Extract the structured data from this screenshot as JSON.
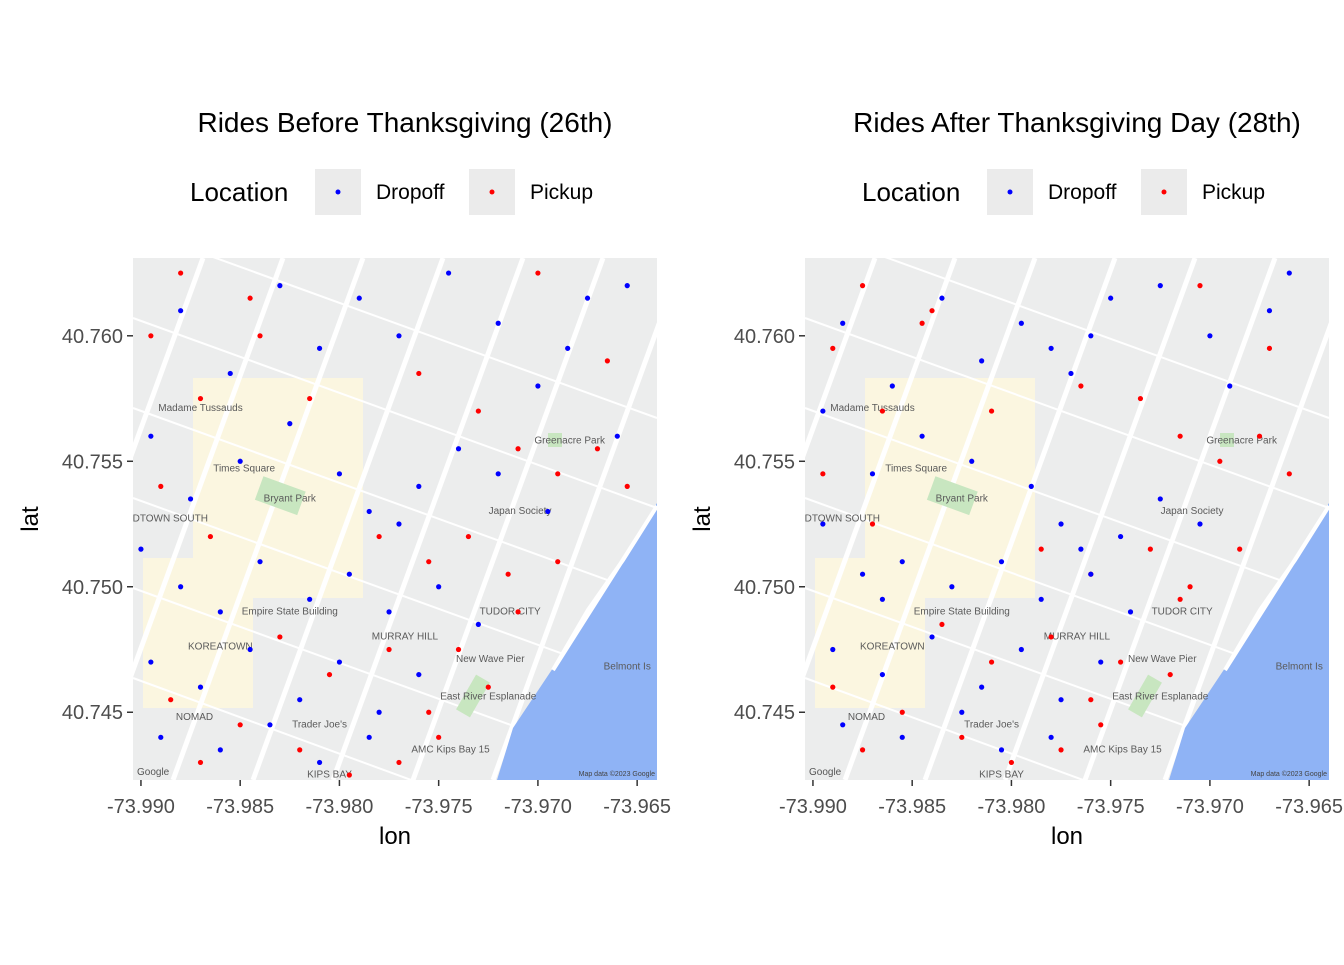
{
  "chart_data": [
    {
      "type": "scatter",
      "title": "Rides Before Thanksgiving (26th)",
      "legend_title": "Location",
      "legend_position": "top",
      "x_label": "lon",
      "y_label": "lat",
      "xlim": [
        -73.9904,
        -73.964
      ],
      "ylim": [
        40.7423,
        40.7631
      ],
      "xticks": [
        {
          "value": -73.99,
          "label": "-73.990"
        },
        {
          "value": -73.985,
          "label": "-73.985"
        },
        {
          "value": -73.98,
          "label": "-73.980"
        },
        {
          "value": -73.975,
          "label": "-73.975"
        },
        {
          "value": -73.97,
          "label": "-73.970"
        },
        {
          "value": -73.965,
          "label": "-73.965"
        }
      ],
      "yticks": [
        {
          "value": 40.745,
          "label": "40.745"
        },
        {
          "value": 40.75,
          "label": "40.750"
        },
        {
          "value": 40.755,
          "label": "40.755"
        },
        {
          "value": 40.76,
          "label": "40.760"
        }
      ],
      "series": [
        {
          "name": "Dropoff",
          "color": "#0000ff",
          "x": [
            -73.988,
            -73.9855,
            -73.983,
            -73.981,
            -73.979,
            -73.977,
            -73.9745,
            -73.972,
            -73.97,
            -73.9675,
            -73.966,
            -73.9895,
            -73.9875,
            -73.985,
            -73.9825,
            -73.98,
            -73.9785,
            -73.977,
            -73.976,
            -73.974,
            -73.972,
            -73.9695,
            -73.99,
            -73.988,
            -73.986,
            -73.984,
            -73.9815,
            -73.9795,
            -73.9775,
            -73.975,
            -73.973,
            -73.9895,
            -73.987,
            -73.9845,
            -73.982,
            -73.98,
            -73.978,
            -73.976,
            -73.989,
            -73.986,
            -73.9835,
            -73.981,
            -73.9785,
            -73.9655,
            -73.9685
          ],
          "values": [
            40.761,
            40.7585,
            40.762,
            40.7595,
            40.7615,
            40.76,
            40.7625,
            40.7605,
            40.758,
            40.7615,
            40.756,
            40.756,
            40.7535,
            40.755,
            40.7565,
            40.7545,
            40.753,
            40.7525,
            40.754,
            40.7555,
            40.7545,
            40.753,
            40.7515,
            40.75,
            40.749,
            40.751,
            40.7495,
            40.7505,
            40.749,
            40.75,
            40.7485,
            40.747,
            40.746,
            40.7475,
            40.7455,
            40.747,
            40.745,
            40.7465,
            40.744,
            40.7435,
            40.7445,
            40.743,
            40.744,
            40.762,
            40.7595
          ]
        },
        {
          "name": "Pickup",
          "color": "#ff0000",
          "x": [
            -73.9895,
            -73.987,
            -73.984,
            -73.9815,
            -73.976,
            -73.973,
            -73.971,
            -73.969,
            -73.967,
            -73.9655,
            -73.978,
            -73.9755,
            -73.9735,
            -73.9715,
            -73.989,
            -73.9865,
            -73.983,
            -73.9805,
            -73.9775,
            -73.9755,
            -73.974,
            -73.9725,
            -73.9885,
            -73.985,
            -73.982,
            -73.9795,
            -73.977,
            -73.975,
            -73.988,
            -73.97,
            -73.969,
            -73.971,
            -73.987,
            -73.9845,
            -73.9665
          ],
          "values": [
            40.76,
            40.7575,
            40.76,
            40.7575,
            40.7585,
            40.757,
            40.7555,
            40.7545,
            40.7555,
            40.754,
            40.752,
            40.751,
            40.752,
            40.7505,
            40.754,
            40.752,
            40.748,
            40.7465,
            40.7475,
            40.745,
            40.7475,
            40.746,
            40.7455,
            40.7445,
            40.7435,
            40.7425,
            40.743,
            40.744,
            40.7625,
            40.7625,
            40.751,
            40.749,
            40.743,
            40.7615,
            40.759
          ]
        }
      ]
    },
    {
      "type": "scatter",
      "title": "Rides After Thanksgiving Day (28th)",
      "legend_title": "Location",
      "legend_position": "top",
      "x_label": "lon",
      "y_label": "lat",
      "xlim": [
        -73.9904,
        -73.964
      ],
      "ylim": [
        40.7423,
        40.7631
      ],
      "xticks": [
        {
          "value": -73.99,
          "label": "-73.990"
        },
        {
          "value": -73.985,
          "label": "-73.985"
        },
        {
          "value": -73.98,
          "label": "-73.980"
        },
        {
          "value": -73.975,
          "label": "-73.975"
        },
        {
          "value": -73.97,
          "label": "-73.970"
        },
        {
          "value": -73.965,
          "label": "-73.965"
        }
      ],
      "yticks": [
        {
          "value": 40.745,
          "label": "40.745"
        },
        {
          "value": 40.75,
          "label": "40.750"
        },
        {
          "value": 40.755,
          "label": "40.755"
        },
        {
          "value": 40.76,
          "label": "40.760"
        }
      ],
      "series": [
        {
          "name": "Dropoff",
          "color": "#0000ff",
          "x": [
            -73.9885,
            -73.986,
            -73.9835,
            -73.9815,
            -73.9795,
            -73.978,
            -73.977,
            -73.976,
            -73.975,
            -73.9725,
            -73.97,
            -73.967,
            -73.9895,
            -73.987,
            -73.9845,
            -73.982,
            -73.979,
            -73.9775,
            -73.9765,
            -73.9745,
            -73.9725,
            -73.9705,
            -73.9895,
            -73.9875,
            -73.9865,
            -73.9855,
            -73.983,
            -73.9805,
            -73.9785,
            -73.976,
            -73.974,
            -73.989,
            -73.9865,
            -73.984,
            -73.9815,
            -73.9795,
            -73.9775,
            -73.9755,
            -73.9885,
            -73.9855,
            -73.9825,
            -73.9805,
            -73.978,
            -73.966,
            -73.969
          ],
          "values": [
            40.7605,
            40.758,
            40.7615,
            40.759,
            40.7605,
            40.7595,
            40.7585,
            40.76,
            40.7615,
            40.762,
            40.76,
            40.761,
            40.757,
            40.7545,
            40.756,
            40.755,
            40.754,
            40.7525,
            40.7515,
            40.752,
            40.7535,
            40.7525,
            40.7525,
            40.7505,
            40.7495,
            40.751,
            40.75,
            40.751,
            40.7495,
            40.7505,
            40.749,
            40.7475,
            40.7465,
            40.748,
            40.746,
            40.7475,
            40.7455,
            40.747,
            40.7445,
            40.744,
            40.745,
            40.7435,
            40.744,
            40.7625,
            40.758
          ]
        },
        {
          "name": "Pickup",
          "color": "#ff0000",
          "x": [
            -73.989,
            -73.9865,
            -73.9845,
            -73.981,
            -73.9765,
            -73.9735,
            -73.9715,
            -73.9695,
            -73.9675,
            -73.966,
            -73.9785,
            -73.976,
            -73.973,
            -73.971,
            -73.9895,
            -73.987,
            -73.9835,
            -73.981,
            -73.978,
            -73.976,
            -73.9745,
            -73.972,
            -73.989,
            -73.9855,
            -73.9825,
            -73.98,
            -73.9775,
            -73.9755,
            -73.9875,
            -73.9705,
            -73.9685,
            -73.9715,
            -73.9875,
            -73.984,
            -73.967
          ],
          "values": [
            40.7595,
            40.757,
            40.7605,
            40.757,
            40.758,
            40.7575,
            40.756,
            40.755,
            40.756,
            40.7545,
            40.7515,
            40.7505,
            40.7515,
            40.75,
            40.7545,
            40.7525,
            40.7485,
            40.747,
            40.748,
            40.7455,
            40.747,
            40.7465,
            40.746,
            40.745,
            40.744,
            40.743,
            40.7435,
            40.7445,
            40.762,
            40.762,
            40.7515,
            40.7495,
            40.7435,
            40.761,
            40.7595
          ]
        }
      ]
    }
  ],
  "map": {
    "attribution": "Map data ©2023 Google",
    "logo": "Google",
    "labels": [
      {
        "text": "Bryant Park",
        "x": -73.9825,
        "y": 40.7534
      },
      {
        "text": "MURRAY HILL",
        "x": -73.9767,
        "y": 40.7479
      },
      {
        "text": "KOREATOWN",
        "x": -73.986,
        "y": 40.7475
      },
      {
        "text": "TUDOR CITY",
        "x": -73.9714,
        "y": 40.7489
      },
      {
        "text": "New Wave Pier",
        "x": -73.9724,
        "y": 40.747
      },
      {
        "text": "Belmont Is",
        "x": -73.9655,
        "y": 40.7467
      },
      {
        "text": "AMC Kips Bay 15",
        "x": -73.9744,
        "y": 40.7434
      },
      {
        "text": "Trader Joe's",
        "x": -73.981,
        "y": 40.7444
      },
      {
        "text": "NOMAD",
        "x": -73.9873,
        "y": 40.7447
      },
      {
        "text": "Empire State Building",
        "x": -73.9825,
        "y": 40.7489
      },
      {
        "text": "MIDTOWN SOUTH",
        "x": -73.9888,
        "y": 40.7526
      },
      {
        "text": "Japan Society",
        "x": -73.9709,
        "y": 40.7529
      },
      {
        "text": "Greenacre Park",
        "x": -73.9684,
        "y": 40.7557
      },
      {
        "text": "Times Square",
        "x": -73.9848,
        "y": 40.7546
      },
      {
        "text": "Madame Tussauds",
        "x": -73.987,
        "y": 40.757
      },
      {
        "text": "KIPS BAY",
        "x": -73.9805,
        "y": 40.7424
      },
      {
        "text": "East River Esplanade",
        "x": -73.9725,
        "y": 40.7455
      }
    ]
  }
}
